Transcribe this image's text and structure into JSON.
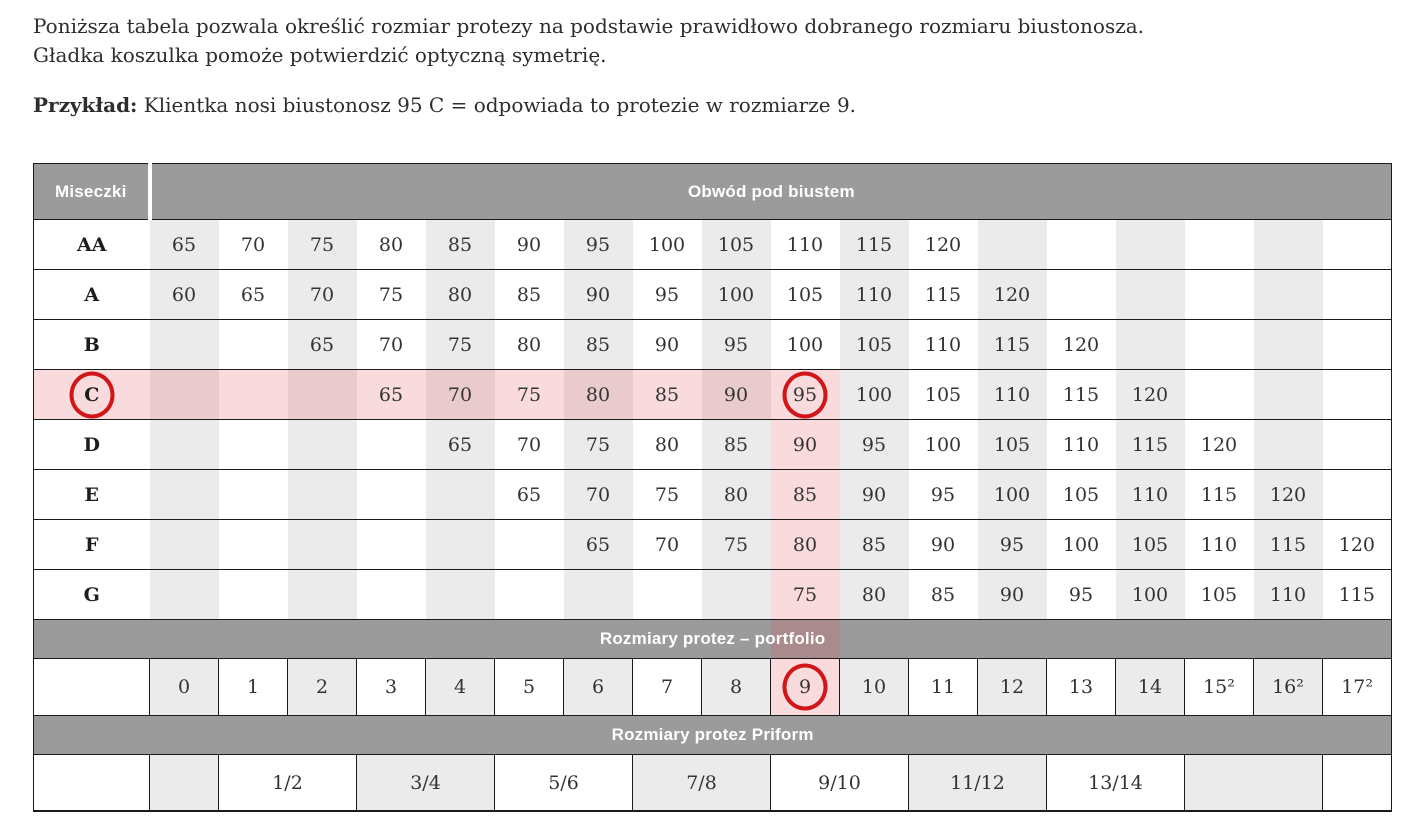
{
  "intro": {
    "line1": "Poniższa tabela pozwala określić rozmiar protezy na podstawie prawidłowo dobranego rozmiaru biustonosza.",
    "line2": "Gładka koszulka pomoże potwierdzić optyczną symetrię.",
    "example_label": "Przykład:",
    "example_text": "Klientka nosi biustonosz 95 C = odpowiada to protezie w rozmiarze 9."
  },
  "colors": {
    "band_bg": "#9b9b9b",
    "stripe": "#ebebeb",
    "pink_overlay": "rgba(226,74,84,0.20)",
    "circle_red": "#d21519",
    "border": "#1a1a1a"
  },
  "table": {
    "corner_header": "Miseczki",
    "band_obwod": "Obwód pod biustem",
    "band_portfolio": "Rozmiary protez – portfolio",
    "band_priform": "Rozmiary protez Priform",
    "cup_rows": [
      {
        "cup": "AA",
        "values": [
          "65",
          "70",
          "75",
          "80",
          "85",
          "90",
          "95",
          "100",
          "105",
          "110",
          "115",
          "120",
          "",
          "",
          "",
          "",
          "",
          ""
        ]
      },
      {
        "cup": "A",
        "values": [
          "60",
          "65",
          "70",
          "75",
          "80",
          "85",
          "90",
          "95",
          "100",
          "105",
          "110",
          "115",
          "120",
          "",
          "",
          "",
          "",
          ""
        ]
      },
      {
        "cup": "B",
        "values": [
          "",
          "",
          "65",
          "70",
          "75",
          "80",
          "85",
          "90",
          "95",
          "100",
          "105",
          "110",
          "115",
          "120",
          "",
          "",
          "",
          ""
        ]
      },
      {
        "cup": "C",
        "values": [
          "",
          "",
          "",
          "65",
          "70",
          "75",
          "80",
          "85",
          "90",
          "95",
          "100",
          "105",
          "110",
          "115",
          "120",
          "",
          "",
          ""
        ]
      },
      {
        "cup": "D",
        "values": [
          "",
          "",
          "",
          "",
          "65",
          "70",
          "75",
          "80",
          "85",
          "90",
          "95",
          "100",
          "105",
          "110",
          "115",
          "120",
          "",
          ""
        ]
      },
      {
        "cup": "E",
        "values": [
          "",
          "",
          "",
          "",
          "",
          "65",
          "70",
          "75",
          "80",
          "85",
          "90",
          "95",
          "100",
          "105",
          "110",
          "115",
          "120",
          ""
        ]
      },
      {
        "cup": "F",
        "values": [
          "",
          "",
          "",
          "",
          "",
          "",
          "65",
          "70",
          "75",
          "80",
          "85",
          "90",
          "95",
          "100",
          "105",
          "110",
          "115",
          "120"
        ]
      },
      {
        "cup": "G",
        "values": [
          "",
          "",
          "",
          "",
          "",
          "",
          "",
          "",
          "",
          "75",
          "80",
          "85",
          "90",
          "95",
          "100",
          "105",
          "110",
          "115"
        ]
      }
    ],
    "size_values": [
      "0",
      "1",
      "2",
      "3",
      "4",
      "5",
      "6",
      "7",
      "8",
      "9",
      "10",
      "11",
      "12",
      "13",
      "14",
      "15²",
      "16²",
      "17²"
    ],
    "priform_cells": [
      {
        "label": "",
        "span": 1,
        "shaded": true
      },
      {
        "label": "1/2",
        "span": 2,
        "shaded": false
      },
      {
        "label": "3/4",
        "span": 2,
        "shaded": true
      },
      {
        "label": "5/6",
        "span": 2,
        "shaded": false
      },
      {
        "label": "7/8",
        "span": 2,
        "shaded": true
      },
      {
        "label": "9/10",
        "span": 2,
        "shaded": false
      },
      {
        "label": "11/12",
        "span": 2,
        "shaded": true
      },
      {
        "label": "13/14",
        "span": 2,
        "shaded": false
      },
      {
        "label": "",
        "span": 2,
        "shaded": true
      },
      {
        "label": "",
        "span": 1,
        "shaded": false
      }
    ],
    "highlight": {
      "pink_row_cup": "C",
      "pink_column": 10,
      "pink_column_rows": [
        "D",
        "E",
        "F",
        "G"
      ],
      "circled_cup": "C",
      "circled_bust_value": "95",
      "circled_size_value": "9"
    }
  }
}
